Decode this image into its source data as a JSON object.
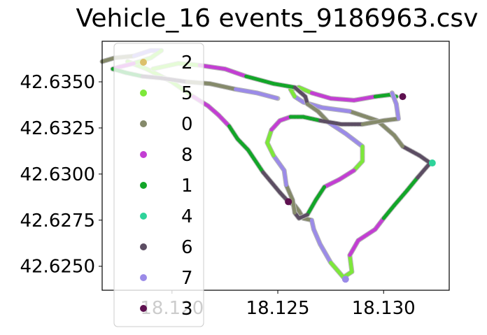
{
  "chart_data": {
    "type": "scatter",
    "title": "Vehicle_16 events_9186963.csv",
    "xlabel": "",
    "ylabel": "",
    "xlim": [
      18.1167,
      18.1331
    ],
    "ylim": [
      42.6237,
      42.6372
    ],
    "x_ticks": [
      18.12,
      18.125,
      18.13
    ],
    "x_tick_labels": [
      "18.120",
      "18.125",
      "18.130"
    ],
    "y_ticks": [
      42.625,
      42.6275,
      42.63,
      42.6325,
      42.635
    ],
    "y_tick_labels": [
      "42.6250",
      "42.6275",
      "42.6300",
      "42.6325",
      "42.6350"
    ],
    "grid": false,
    "legend_position": "upper-left",
    "legend": [
      {
        "label": "2",
        "color": "#dcc06a"
      },
      {
        "label": "5",
        "color": "#7de83a"
      },
      {
        "label": "0",
        "color": "#858a6a"
      },
      {
        "label": "8",
        "color": "#c33ed3"
      },
      {
        "label": "1",
        "color": "#12a628"
      },
      {
        "label": "4",
        "color": "#2ed39a"
      },
      {
        "label": "6",
        "color": "#5c4d63"
      },
      {
        "label": "7",
        "color": "#9b8be8"
      },
      {
        "label": "3",
        "color": "#5e1150"
      }
    ],
    "route_inner": [
      [
        18.1179,
        42.6361
      ],
      [
        18.1188,
        42.6357
      ],
      [
        18.12,
        42.635
      ],
      [
        18.121,
        42.6342
      ],
      [
        18.1217,
        42.6337
      ],
      [
        18.1222,
        42.6332
      ],
      [
        18.1227,
        42.6326
      ],
      [
        18.1231,
        42.6319
      ],
      [
        18.1236,
        42.6313
      ],
      [
        18.1243,
        42.6301
      ],
      [
        18.1251,
        42.629
      ],
      [
        18.1255,
        42.6285
      ],
      [
        18.1258,
        42.6283
      ],
      [
        18.126,
        42.628
      ],
      [
        18.1262,
        42.6276
      ],
      [
        18.1266,
        42.6275
      ],
      [
        18.1267,
        42.627
      ],
      [
        18.127,
        42.6262
      ],
      [
        18.1275,
        42.6252
      ],
      [
        18.1281,
        42.6244
      ],
      [
        18.1285,
        42.6247
      ],
      [
        18.1284,
        42.6256
      ],
      [
        18.1288,
        42.6264
      ],
      [
        18.1296,
        42.627
      ],
      [
        18.13,
        42.6276
      ],
      [
        18.1305,
        42.6283
      ],
      [
        18.1311,
        42.6291
      ],
      [
        18.1316,
        42.6298
      ],
      [
        18.1322,
        42.6306
      ],
      [
        18.1317,
        42.631
      ],
      [
        18.1309,
        42.6315
      ],
      [
        18.1305,
        42.6321
      ],
      [
        18.1297,
        42.6329
      ],
      [
        18.1284,
        42.6334
      ],
      [
        18.1271,
        42.6336
      ],
      [
        18.1262,
        42.6339
      ],
      [
        18.1258,
        42.6342
      ],
      [
        18.1256,
        42.6346
      ],
      [
        18.126,
        42.6347
      ],
      [
        18.1266,
        42.6344
      ],
      [
        18.1275,
        42.6341
      ],
      [
        18.1286,
        42.634
      ],
      [
        18.1296,
        42.6342
      ],
      [
        18.1303,
        42.6343
      ],
      [
        18.1306,
        42.6342
      ]
    ],
    "route_outer": [
      [
        18.1191,
        42.6357
      ],
      [
        18.1203,
        42.636
      ],
      [
        18.1213,
        42.6359
      ],
      [
        18.1225,
        42.6357
      ],
      [
        18.1235,
        42.6353
      ],
      [
        18.1248,
        42.6349
      ],
      [
        18.1258,
        42.6347
      ],
      [
        18.1263,
        42.6342
      ],
      [
        18.1264,
        42.6338
      ],
      [
        18.1269,
        42.6334
      ],
      [
        18.1274,
        42.6328
      ],
      [
        18.1282,
        42.6322
      ],
      [
        18.129,
        42.6315
      ],
      [
        18.129,
        42.6307
      ],
      [
        18.1286,
        42.6302
      ],
      [
        18.1279,
        42.6297
      ],
      [
        18.1272,
        42.6293
      ],
      [
        18.1268,
        42.6286
      ],
      [
        18.1264,
        42.6278
      ],
      [
        18.126,
        42.6276
      ],
      [
        18.1258,
        42.6279
      ],
      [
        18.1257,
        42.6286
      ],
      [
        18.1254,
        42.6294
      ],
      [
        18.1253,
        42.6302
      ],
      [
        18.1248,
        42.631
      ],
      [
        18.1245,
        42.6317
      ],
      [
        18.1247,
        42.6324
      ],
      [
        18.1251,
        42.6329
      ],
      [
        18.1256,
        42.6331
      ],
      [
        18.1262,
        42.6331
      ],
      [
        18.127,
        42.6329
      ],
      [
        18.128,
        42.6327
      ],
      [
        18.129,
        42.6327
      ],
      [
        18.13,
        42.6329
      ],
      [
        18.1307,
        42.633
      ],
      [
        18.1306,
        42.6338
      ],
      [
        18.1304,
        42.6344
      ]
    ],
    "route_west_loop": [
      [
        18.1167,
        42.6361
      ],
      [
        18.1173,
        42.6363
      ],
      [
        18.1182,
        42.6364
      ],
      [
        18.119,
        42.6367
      ],
      [
        18.1195,
        42.6367
      ],
      [
        18.119,
        42.6363
      ],
      [
        18.1182,
        42.636
      ],
      [
        18.1175,
        42.6358
      ],
      [
        18.1172,
        42.6357
      ],
      [
        18.1178,
        42.6355
      ],
      [
        18.1186,
        42.6353
      ],
      [
        18.1195,
        42.6352
      ],
      [
        18.1207,
        42.635
      ],
      [
        18.1218,
        42.6349
      ],
      [
        18.123,
        42.6346
      ],
      [
        18.124,
        42.6344
      ],
      [
        18.125,
        42.6341
      ]
    ],
    "event_markers": [
      {
        "x": 18.1255,
        "y": 42.6285,
        "color": "#5e1150"
      },
      {
        "x": 18.1309,
        "y": 42.6342,
        "color": "#5e1150"
      },
      {
        "x": 18.1282,
        "y": 42.6243,
        "color": "#9b8be8"
      },
      {
        "x": 18.1323,
        "y": 42.6306,
        "color": "#2ed39a"
      }
    ]
  }
}
